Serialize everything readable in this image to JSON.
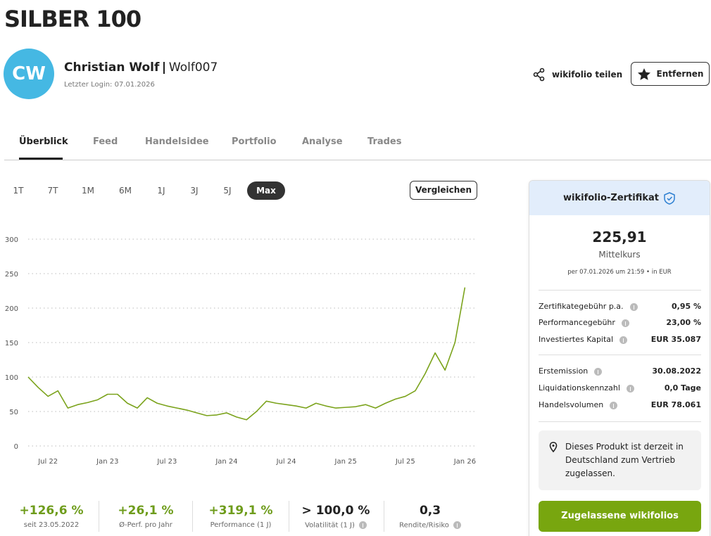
{
  "header": {
    "title": "SILBER 100",
    "avatar": "CW",
    "name": "Christian Wolf",
    "username": "Wolf007",
    "last_login": "Letzter Login: 07.01.2026",
    "share": "wikifolio teilen",
    "remove": "Entfernen"
  },
  "tabs": [
    "Überblick",
    "Feed",
    "Handelsidee",
    "Portfolio",
    "Analyse",
    "Trades"
  ],
  "periods": [
    "1T",
    "7T",
    "1M",
    "6M",
    "1J",
    "3J",
    "5J",
    "Max"
  ],
  "compare": "Vergleichen",
  "chart_data": {
    "type": "line",
    "categories": [
      null,
      null,
      "Jul 22",
      null,
      null,
      null,
      null,
      null,
      "Jan 23",
      null,
      null,
      null,
      null,
      null,
      "Jul 23",
      null,
      null,
      null,
      null,
      null,
      "Jan 24",
      null,
      null,
      null,
      null,
      null,
      "Jul 24",
      null,
      null,
      null,
      null,
      null,
      "Jan 25",
      null,
      null,
      null,
      null,
      null,
      "Jul 25",
      null,
      null,
      null,
      null,
      null,
      "Jan 26"
    ],
    "series": [
      {
        "color": "#7ba31c",
        "values": [
          100,
          85,
          72,
          80,
          55,
          60,
          63,
          67,
          75,
          75,
          62,
          55,
          70,
          62,
          58,
          55,
          52,
          48,
          44,
          45,
          48,
          42,
          38,
          50,
          65,
          62,
          60,
          58,
          55,
          62,
          58,
          55,
          56,
          57,
          60,
          55,
          62,
          68,
          72,
          80,
          105,
          135,
          110,
          150,
          230
        ]
      }
    ],
    "ylim": [
      0,
      300
    ],
    "yticks": [
      0,
      50,
      100,
      150,
      200,
      250,
      300
    ],
    "grid": true
  },
  "stats": [
    {
      "value": "+126,6 %",
      "label": "seit 23.05.2022"
    },
    {
      "value": "+26,1 %",
      "label": "Ø-Perf. pro Jahr"
    },
    {
      "value": "+319,1 %",
      "label": "Performance (1 J)"
    },
    {
      "value": "> 100,0 %",
      "label": "Volatilität (1 J)"
    },
    {
      "value": "0,3",
      "label": "Rendite/Risiko"
    }
  ],
  "certificate": {
    "title": "wikifolio-Zertifikat",
    "price": "225,91",
    "price_label": "Mittelkurs",
    "as_of": "per 07.01.2026 um 21:59 • in EUR",
    "rows": [
      [
        "Zertifikategebühr p.a.",
        "0,95 %"
      ],
      [
        "Performancegebühr",
        "23,00 %"
      ],
      [
        "Investiertes Kapital",
        "EUR 35.087"
      ],
      [
        "Erstemission",
        "30.08.2022"
      ],
      [
        "Liquidationskennzahl",
        "0,0 Tage"
      ],
      [
        "Handelsvolumen",
        "EUR 78.061"
      ]
    ],
    "notice": "Dieses Produkt ist derzeit in Deutschland zum Vertrieb zugelassen.",
    "button": "Zugelassene wikifolios"
  }
}
